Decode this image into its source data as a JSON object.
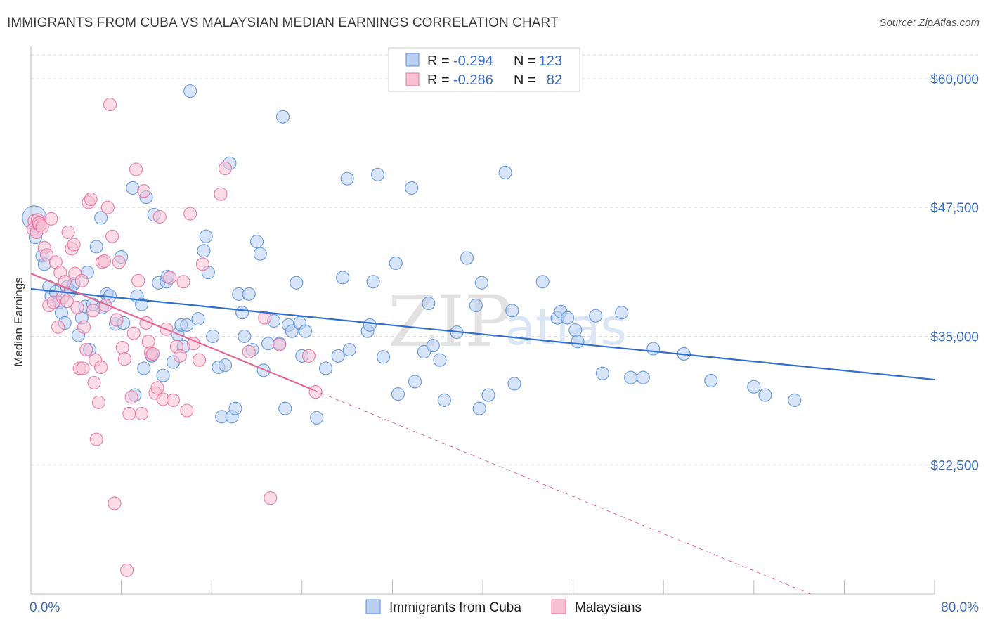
{
  "header": {
    "title": "IMMIGRANTS FROM CUBA VS MALAYSIAN MEDIAN EARNINGS CORRELATION CHART",
    "source": "Source: ZipAtlas.com"
  },
  "watermark": {
    "zip": "ZIP",
    "atlas": "atlas"
  },
  "colors": {
    "blue": "#5b8fd9",
    "blue_fill": "#b8cff2",
    "blue_line": "#2f6fd0",
    "pink": "#e7739c",
    "pink_fill": "#f7c0d3",
    "pink_line": "#e06a94",
    "axis_text": "#3b6fc4",
    "grid": "#dddddd"
  },
  "legend": {
    "rows": [
      {
        "r_label": "R = ",
        "r_value": "-0.294",
        "n_label": "N = ",
        "n_value": "123"
      },
      {
        "r_label": "R = ",
        "r_value": "-0.286",
        "n_label": "N = ",
        "n_value": "82"
      }
    ]
  },
  "chart_data": {
    "type": "scatter",
    "title": "IMMIGRANTS FROM CUBA VS MALAYSIAN MEDIAN EARNINGS CORRELATION CHART",
    "xlabel": "",
    "ylabel": "Median Earnings",
    "xlim": [
      0,
      80
    ],
    "ylim": [
      10000,
      63000
    ],
    "x_tick_labels": [
      "0.0%",
      "80.0%"
    ],
    "y_ticks": [
      22500,
      35000,
      47500,
      60000
    ],
    "y_tick_labels": [
      "$22,500",
      "$35,000",
      "$47,500",
      "$60,000"
    ],
    "grid": true,
    "legend_position": "top-center",
    "series": [
      {
        "name": "Immigrants from Cuba",
        "color": "#5b8fd9",
        "R": -0.294,
        "N": 123,
        "trend": {
          "x": [
            0,
            80
          ],
          "y": [
            39600,
            30800
          ]
        },
        "points": [
          [
            0.3,
            46500
          ],
          [
            0.4,
            44600
          ],
          [
            1.0,
            42800
          ],
          [
            1.2,
            42000
          ],
          [
            1.6,
            39800
          ],
          [
            1.8,
            38900
          ],
          [
            2.2,
            39300
          ],
          [
            2.5,
            38300
          ],
          [
            2.7,
            37300
          ],
          [
            3.0,
            36300
          ],
          [
            3.2,
            39800
          ],
          [
            3.5,
            39400
          ],
          [
            3.8,
            40100
          ],
          [
            4.2,
            35100
          ],
          [
            4.5,
            36800
          ],
          [
            4.8,
            37900
          ],
          [
            5.0,
            41200
          ],
          [
            5.2,
            33700
          ],
          [
            5.5,
            38100
          ],
          [
            5.8,
            43700
          ],
          [
            6.2,
            46500
          ],
          [
            6.3,
            37800
          ],
          [
            6.7,
            39100
          ],
          [
            7.0,
            38900
          ],
          [
            7.5,
            36200
          ],
          [
            8.0,
            42700
          ],
          [
            8.2,
            36300
          ],
          [
            9.0,
            49400
          ],
          [
            9.2,
            29300
          ],
          [
            9.4,
            38900
          ],
          [
            9.8,
            38100
          ],
          [
            10.0,
            31900
          ],
          [
            10.2,
            48500
          ],
          [
            10.7,
            33100
          ],
          [
            10.9,
            46800
          ],
          [
            11.3,
            40200
          ],
          [
            11.7,
            31200
          ],
          [
            12.0,
            40300
          ],
          [
            12.1,
            40800
          ],
          [
            12.6,
            32500
          ],
          [
            13.0,
            35200
          ],
          [
            13.3,
            36100
          ],
          [
            13.5,
            34000
          ],
          [
            13.8,
            36100
          ],
          [
            14.1,
            58800
          ],
          [
            14.8,
            36700
          ],
          [
            15.3,
            43300
          ],
          [
            15.5,
            44700
          ],
          [
            15.7,
            41200
          ],
          [
            16.1,
            35000
          ],
          [
            16.6,
            32000
          ],
          [
            16.9,
            27200
          ],
          [
            17.2,
            32200
          ],
          [
            17.6,
            51800
          ],
          [
            17.8,
            27200
          ],
          [
            18.1,
            28000
          ],
          [
            18.4,
            39100
          ],
          [
            18.7,
            37300
          ],
          [
            18.9,
            35000
          ],
          [
            19.3,
            39100
          ],
          [
            19.6,
            33700
          ],
          [
            20.0,
            44200
          ],
          [
            20.3,
            43000
          ],
          [
            20.6,
            31700
          ],
          [
            21.0,
            34300
          ],
          [
            21.5,
            36500
          ],
          [
            22.0,
            34300
          ],
          [
            22.3,
            56300
          ],
          [
            22.5,
            28000
          ],
          [
            22.8,
            36100
          ],
          [
            23.1,
            35500
          ],
          [
            23.5,
            40200
          ],
          [
            23.8,
            36300
          ],
          [
            24.0,
            33100
          ],
          [
            24.3,
            35500
          ],
          [
            25.3,
            27100
          ],
          [
            26.1,
            31900
          ],
          [
            27.2,
            33100
          ],
          [
            27.6,
            40700
          ],
          [
            28.0,
            50300
          ],
          [
            28.2,
            33700
          ],
          [
            29.8,
            35500
          ],
          [
            30.0,
            36100
          ],
          [
            30.3,
            40300
          ],
          [
            30.7,
            50700
          ],
          [
            31.2,
            33000
          ],
          [
            32.3,
            42100
          ],
          [
            32.5,
            29400
          ],
          [
            33.7,
            49400
          ],
          [
            34.0,
            30600
          ],
          [
            34.8,
            33500
          ],
          [
            35.2,
            38200
          ],
          [
            35.6,
            34100
          ],
          [
            36.2,
            32700
          ],
          [
            36.6,
            28800
          ],
          [
            37.7,
            35400
          ],
          [
            38.6,
            42600
          ],
          [
            39.4,
            38000
          ],
          [
            39.7,
            28000
          ],
          [
            39.9,
            40200
          ],
          [
            40.5,
            29300
          ],
          [
            42.0,
            50900
          ],
          [
            42.6,
            37500
          ],
          [
            42.8,
            30400
          ],
          [
            45.3,
            40300
          ],
          [
            46.6,
            36800
          ],
          [
            46.9,
            37400
          ],
          [
            47.5,
            36800
          ],
          [
            48.2,
            35600
          ],
          [
            48.4,
            34500
          ],
          [
            50.0,
            37000
          ],
          [
            50.6,
            31400
          ],
          [
            52.3,
            37300
          ],
          [
            53.1,
            31000
          ],
          [
            54.2,
            31000
          ],
          [
            55.1,
            33800
          ],
          [
            57.8,
            33300
          ],
          [
            60.2,
            30700
          ],
          [
            64.0,
            30100
          ],
          [
            65.0,
            29300
          ],
          [
            67.6,
            28800
          ]
        ]
      },
      {
        "name": "Malaysians",
        "color": "#e7739c",
        "R": -0.286,
        "N": 82,
        "trend": {
          "x": [
            0,
            25
          ],
          "y": [
            41100,
            29800
          ]
        },
        "trend_extension": {
          "x": [
            25,
            69
          ],
          "y": [
            29800,
            10000
          ]
        },
        "points": [
          [
            0.2,
            45400
          ],
          [
            0.3,
            46200
          ],
          [
            0.5,
            45100
          ],
          [
            0.6,
            46300
          ],
          [
            0.7,
            46000
          ],
          [
            0.8,
            45800
          ],
          [
            1.0,
            45600
          ],
          [
            1.2,
            43600
          ],
          [
            1.4,
            42900
          ],
          [
            1.6,
            38000
          ],
          [
            1.8,
            46400
          ],
          [
            2.0,
            38300
          ],
          [
            2.2,
            42200
          ],
          [
            2.4,
            35900
          ],
          [
            2.6,
            41200
          ],
          [
            2.8,
            38800
          ],
          [
            3.0,
            40300
          ],
          [
            3.2,
            38400
          ],
          [
            3.3,
            45100
          ],
          [
            3.6,
            43500
          ],
          [
            3.8,
            43900
          ],
          [
            3.9,
            41100
          ],
          [
            4.1,
            37800
          ],
          [
            4.3,
            31900
          ],
          [
            4.5,
            40400
          ],
          [
            4.6,
            31900
          ],
          [
            4.7,
            35900
          ],
          [
            4.9,
            33700
          ],
          [
            5.1,
            48000
          ],
          [
            5.3,
            48300
          ],
          [
            5.5,
            37500
          ],
          [
            5.6,
            30500
          ],
          [
            5.7,
            32700
          ],
          [
            5.8,
            25000
          ],
          [
            6.0,
            28600
          ],
          [
            6.2,
            32000
          ],
          [
            6.3,
            42200
          ],
          [
            6.5,
            42300
          ],
          [
            6.6,
            38000
          ],
          [
            6.8,
            47500
          ],
          [
            7.0,
            57500
          ],
          [
            7.2,
            44700
          ],
          [
            7.4,
            18800
          ],
          [
            7.6,
            36600
          ],
          [
            7.8,
            42200
          ],
          [
            8.1,
            33900
          ],
          [
            8.3,
            32800
          ],
          [
            8.5,
            12300
          ],
          [
            8.7,
            27500
          ],
          [
            8.9,
            29100
          ],
          [
            9.1,
            35300
          ],
          [
            9.3,
            51200
          ],
          [
            9.5,
            40400
          ],
          [
            9.8,
            27500
          ],
          [
            10.0,
            49100
          ],
          [
            10.2,
            36300
          ],
          [
            10.4,
            34500
          ],
          [
            10.6,
            33400
          ],
          [
            10.8,
            33300
          ],
          [
            11.0,
            29500
          ],
          [
            11.2,
            30000
          ],
          [
            11.4,
            46600
          ],
          [
            11.7,
            28900
          ],
          [
            12.0,
            35700
          ],
          [
            12.3,
            40700
          ],
          [
            12.6,
            28800
          ],
          [
            12.9,
            34000
          ],
          [
            13.2,
            33100
          ],
          [
            13.5,
            40300
          ],
          [
            13.8,
            27800
          ],
          [
            14.1,
            46900
          ],
          [
            14.4,
            34300
          ],
          [
            14.9,
            32700
          ],
          [
            15.2,
            42000
          ],
          [
            16.8,
            48800
          ],
          [
            17.2,
            51300
          ],
          [
            19.3,
            33500
          ],
          [
            20.7,
            36800
          ],
          [
            21.2,
            19300
          ],
          [
            22.0,
            34200
          ],
          [
            24.6,
            33100
          ],
          [
            25.2,
            29600
          ]
        ]
      }
    ]
  },
  "bottom_legend": [
    {
      "label": "Immigrants from Cuba"
    },
    {
      "label": "Malaysians"
    }
  ]
}
